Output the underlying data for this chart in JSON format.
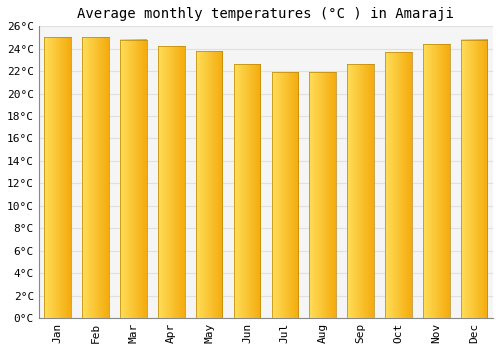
{
  "title": "Average monthly temperatures (°C ) in Amaraji",
  "months": [
    "Jan",
    "Feb",
    "Mar",
    "Apr",
    "May",
    "Jun",
    "Jul",
    "Aug",
    "Sep",
    "Oct",
    "Nov",
    "Dec"
  ],
  "values": [
    25.0,
    25.0,
    24.8,
    24.2,
    23.8,
    22.6,
    21.9,
    21.9,
    22.6,
    23.7,
    24.4,
    24.8
  ],
  "bar_color_left": "#FFD966",
  "bar_color_right": "#F5A800",
  "bar_color_dark": "#CC8800",
  "ylim": [
    0,
    26
  ],
  "yticks": [
    0,
    2,
    4,
    6,
    8,
    10,
    12,
    14,
    16,
    18,
    20,
    22,
    24,
    26
  ],
  "ytick_labels": [
    "0°C",
    "2°C",
    "4°C",
    "6°C",
    "8°C",
    "10°C",
    "12°C",
    "14°C",
    "16°C",
    "18°C",
    "20°C",
    "22°C",
    "24°C",
    "26°C"
  ],
  "background_color": "#FFFFFF",
  "plot_bg_color": "#F5F5F5",
  "grid_color": "#E0E0E0",
  "title_fontsize": 10,
  "tick_fontsize": 8,
  "font_family": "monospace",
  "bar_width": 0.7
}
